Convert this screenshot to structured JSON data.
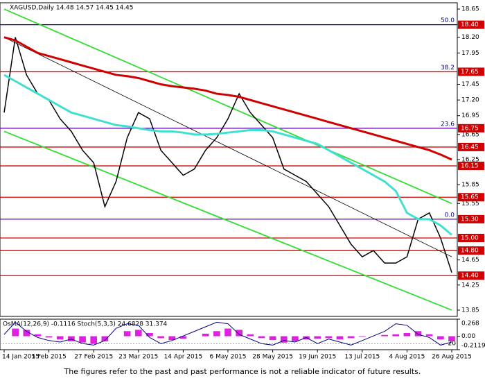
{
  "chart_data": [
    {
      "type": "line",
      "title": "XAGUSD,Daily  14.48 14.57 14.45 14.45",
      "categories": [
        "14 Jan 2015",
        null,
        null,
        null,
        "5 Feb 2015",
        null,
        null,
        null,
        "27 Feb 2015",
        null,
        null,
        null,
        "23 Mar 2015",
        null,
        null,
        null,
        "14 Apr 2015",
        null,
        null,
        null,
        "6 May 2015",
        null,
        null,
        null,
        "28 May 2015",
        null,
        null,
        null,
        "19 Jun 2015",
        null,
        null,
        null,
        "13 Jul 2015",
        null,
        null,
        null,
        "4 Aug 2015",
        null,
        null,
        null,
        "26 Aug 2015"
      ],
      "series": [
        {
          "color": "#000000",
          "values": [
            17.0,
            18.2,
            17.6,
            17.3,
            17.2,
            16.9,
            16.7,
            16.4,
            16.2,
            15.5,
            15.9,
            16.6,
            17.0,
            16.9,
            16.4,
            16.2,
            16.0,
            16.1,
            16.4,
            16.6,
            16.9,
            17.3,
            17.0,
            16.8,
            16.6,
            16.1,
            16.0,
            15.9,
            15.7,
            15.5,
            15.2,
            14.9,
            14.7,
            14.8,
            14.6,
            14.6,
            14.7,
            15.3,
            15.4,
            15.0,
            14.45
          ]
        },
        {
          "color": "#d00000",
          "values": [
            18.2,
            18.15,
            18.05,
            17.95,
            17.9,
            17.85,
            17.8,
            17.75,
            17.7,
            17.65,
            17.6,
            17.58,
            17.55,
            17.5,
            17.45,
            17.42,
            17.4,
            17.38,
            17.35,
            17.3,
            17.28,
            17.25,
            17.2,
            17.15,
            17.1,
            17.05,
            17.0,
            16.95,
            16.9,
            16.85,
            16.8,
            16.75,
            16.7,
            16.65,
            16.6,
            16.55,
            16.5,
            16.45,
            16.4,
            16.33,
            16.25
          ]
        },
        {
          "color": "#40e0d0",
          "values": [
            17.6,
            17.5,
            17.4,
            17.3,
            17.2,
            17.1,
            17.0,
            16.95,
            16.9,
            16.85,
            16.8,
            16.78,
            16.75,
            16.72,
            16.7,
            16.7,
            16.68,
            16.65,
            16.65,
            16.66,
            16.68,
            16.7,
            16.72,
            16.72,
            16.7,
            16.65,
            16.6,
            16.55,
            16.5,
            16.4,
            16.3,
            16.2,
            16.1,
            16.0,
            15.9,
            15.75,
            15.4,
            15.3,
            15.3,
            15.2,
            15.05
          ]
        }
      ],
      "trendlines": [
        {
          "color": "#33dd33",
          "values": [
            18.65,
            15.55
          ]
        },
        {
          "color": "#33dd33",
          "values": [
            16.7,
            13.85
          ]
        },
        {
          "color": "#000000",
          "values": [
            18.2,
            14.7
          ]
        }
      ],
      "levels": [
        {
          "value": 18.4,
          "label": "18.40",
          "fib": "50.0",
          "color": "#000080"
        },
        {
          "value": 17.65,
          "label": "17.65",
          "fib": "38.2",
          "color": "#d00000"
        },
        {
          "value": 16.75,
          "label": "16.75",
          "fib": "23.6",
          "color": "#6a0dad"
        },
        {
          "value": 16.45,
          "label": "16.45",
          "color": "#d00000"
        },
        {
          "value": 16.15,
          "label": "16.15",
          "color": "#d00000"
        },
        {
          "value": 15.65,
          "label": "15.65",
          "color": "#d00000"
        },
        {
          "value": 15.3,
          "label": "15.30",
          "fib": "0.0",
          "color": "#6a0dad"
        },
        {
          "value": 15.0,
          "label": "15.00",
          "color": "#d00000"
        },
        {
          "value": 14.8,
          "label": "14.80",
          "color": "#d00000"
        },
        {
          "value": 14.4,
          "label": "14.40",
          "color": "#d00000"
        }
      ],
      "ylim": [
        13.75,
        18.75
      ],
      "yticks": [
        18.65,
        {
          "value": 18.2,
          "label": "18.20"
        },
        17.95,
        17.45,
        {
          "value": 17.2,
          "label": "17.20"
        },
        16.95,
        16.65,
        16.25,
        15.85,
        15.55,
        14.65,
        14.25,
        13.85
      ]
    },
    {
      "type": "bar",
      "title": "OsMA(12,26,9) -0.1116  Stoch(5,3,3) 24.6828 31.374",
      "values": [
        0.0,
        0.12,
        0.1,
        0.03,
        -0.02,
        -0.05,
        -0.08,
        -0.1,
        -0.12,
        -0.08,
        0.0,
        0.08,
        0.1,
        0.05,
        -0.03,
        -0.06,
        -0.04,
        0.0,
        0.04,
        0.08,
        0.12,
        0.1,
        0.03,
        -0.03,
        -0.06,
        -0.1,
        -0.08,
        -0.05,
        -0.04,
        -0.03,
        -0.05,
        -0.03,
        -0.01,
        0.0,
        0.02,
        0.03,
        0.05,
        0.08,
        0.03,
        -0.05,
        -0.08
      ],
      "color": "#e020e0",
      "ylim": [
        -0.2119,
        0.268
      ],
      "yticks": [
        0.268,
        {
          "value": 0,
          "label": "0.00"
        },
        -0.2119
      ],
      "series": [
        {
          "color": "#000080",
          "axis": "y2",
          "values": [
            50,
            90,
            60,
            40,
            30,
            25,
            35,
            20,
            15,
            30,
            70,
            85,
            80,
            40,
            20,
            30,
            45,
            60,
            75,
            90,
            85,
            50,
            35,
            20,
            15,
            30,
            25,
            40,
            20,
            35,
            25,
            15,
            30,
            45,
            60,
            85,
            80,
            50,
            40,
            15,
            25
          ]
        }
      ],
      "y2lim": [
        0,
        100
      ],
      "y2ticks": [
        20
      ]
    }
  ],
  "footer": "The figures refer to the past and past performance is not a reliable indicator of future results."
}
